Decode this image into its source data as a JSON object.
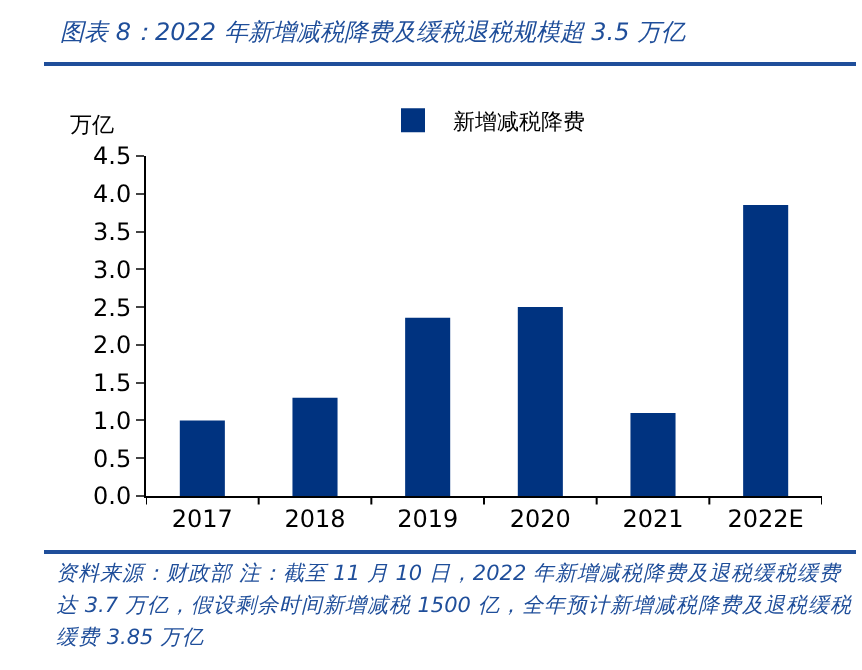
{
  "chart_data": {
    "type": "bar",
    "title": "图表 8：2022 年新增减税降费及缓税退税规模超 3.5 万亿",
    "ylabel": "万亿",
    "categories": [
      "2017",
      "2018",
      "2019",
      "2020",
      "2021",
      "2022E"
    ],
    "series": [
      {
        "name": "新增减税降费",
        "color": "#003380",
        "values": [
          1.0,
          1.3,
          2.36,
          2.5,
          1.1,
          3.85
        ]
      }
    ],
    "ylim": [
      0,
      4.5
    ],
    "yticks": [
      {
        "value": 0,
        "label": "0.0"
      },
      0.5,
      {
        "value": 1,
        "label": "1.0"
      },
      1.5,
      {
        "value": 2,
        "label": "2.0"
      },
      2.5,
      {
        "value": 3,
        "label": "3.0"
      },
      3.5,
      {
        "value": 4,
        "label": "4.0"
      },
      4.5
    ],
    "grid": false,
    "legend": "top",
    "annotations": [
      "资料来源：财政部 注：截至 11 月 10 日，2022 年新增减税降费及退税缓税缓费达 3.7 万亿，假设剩余时间新增减税 1500 亿，全年预计新增减税降费及退税缓税缓费 3.85 万亿"
    ]
  }
}
